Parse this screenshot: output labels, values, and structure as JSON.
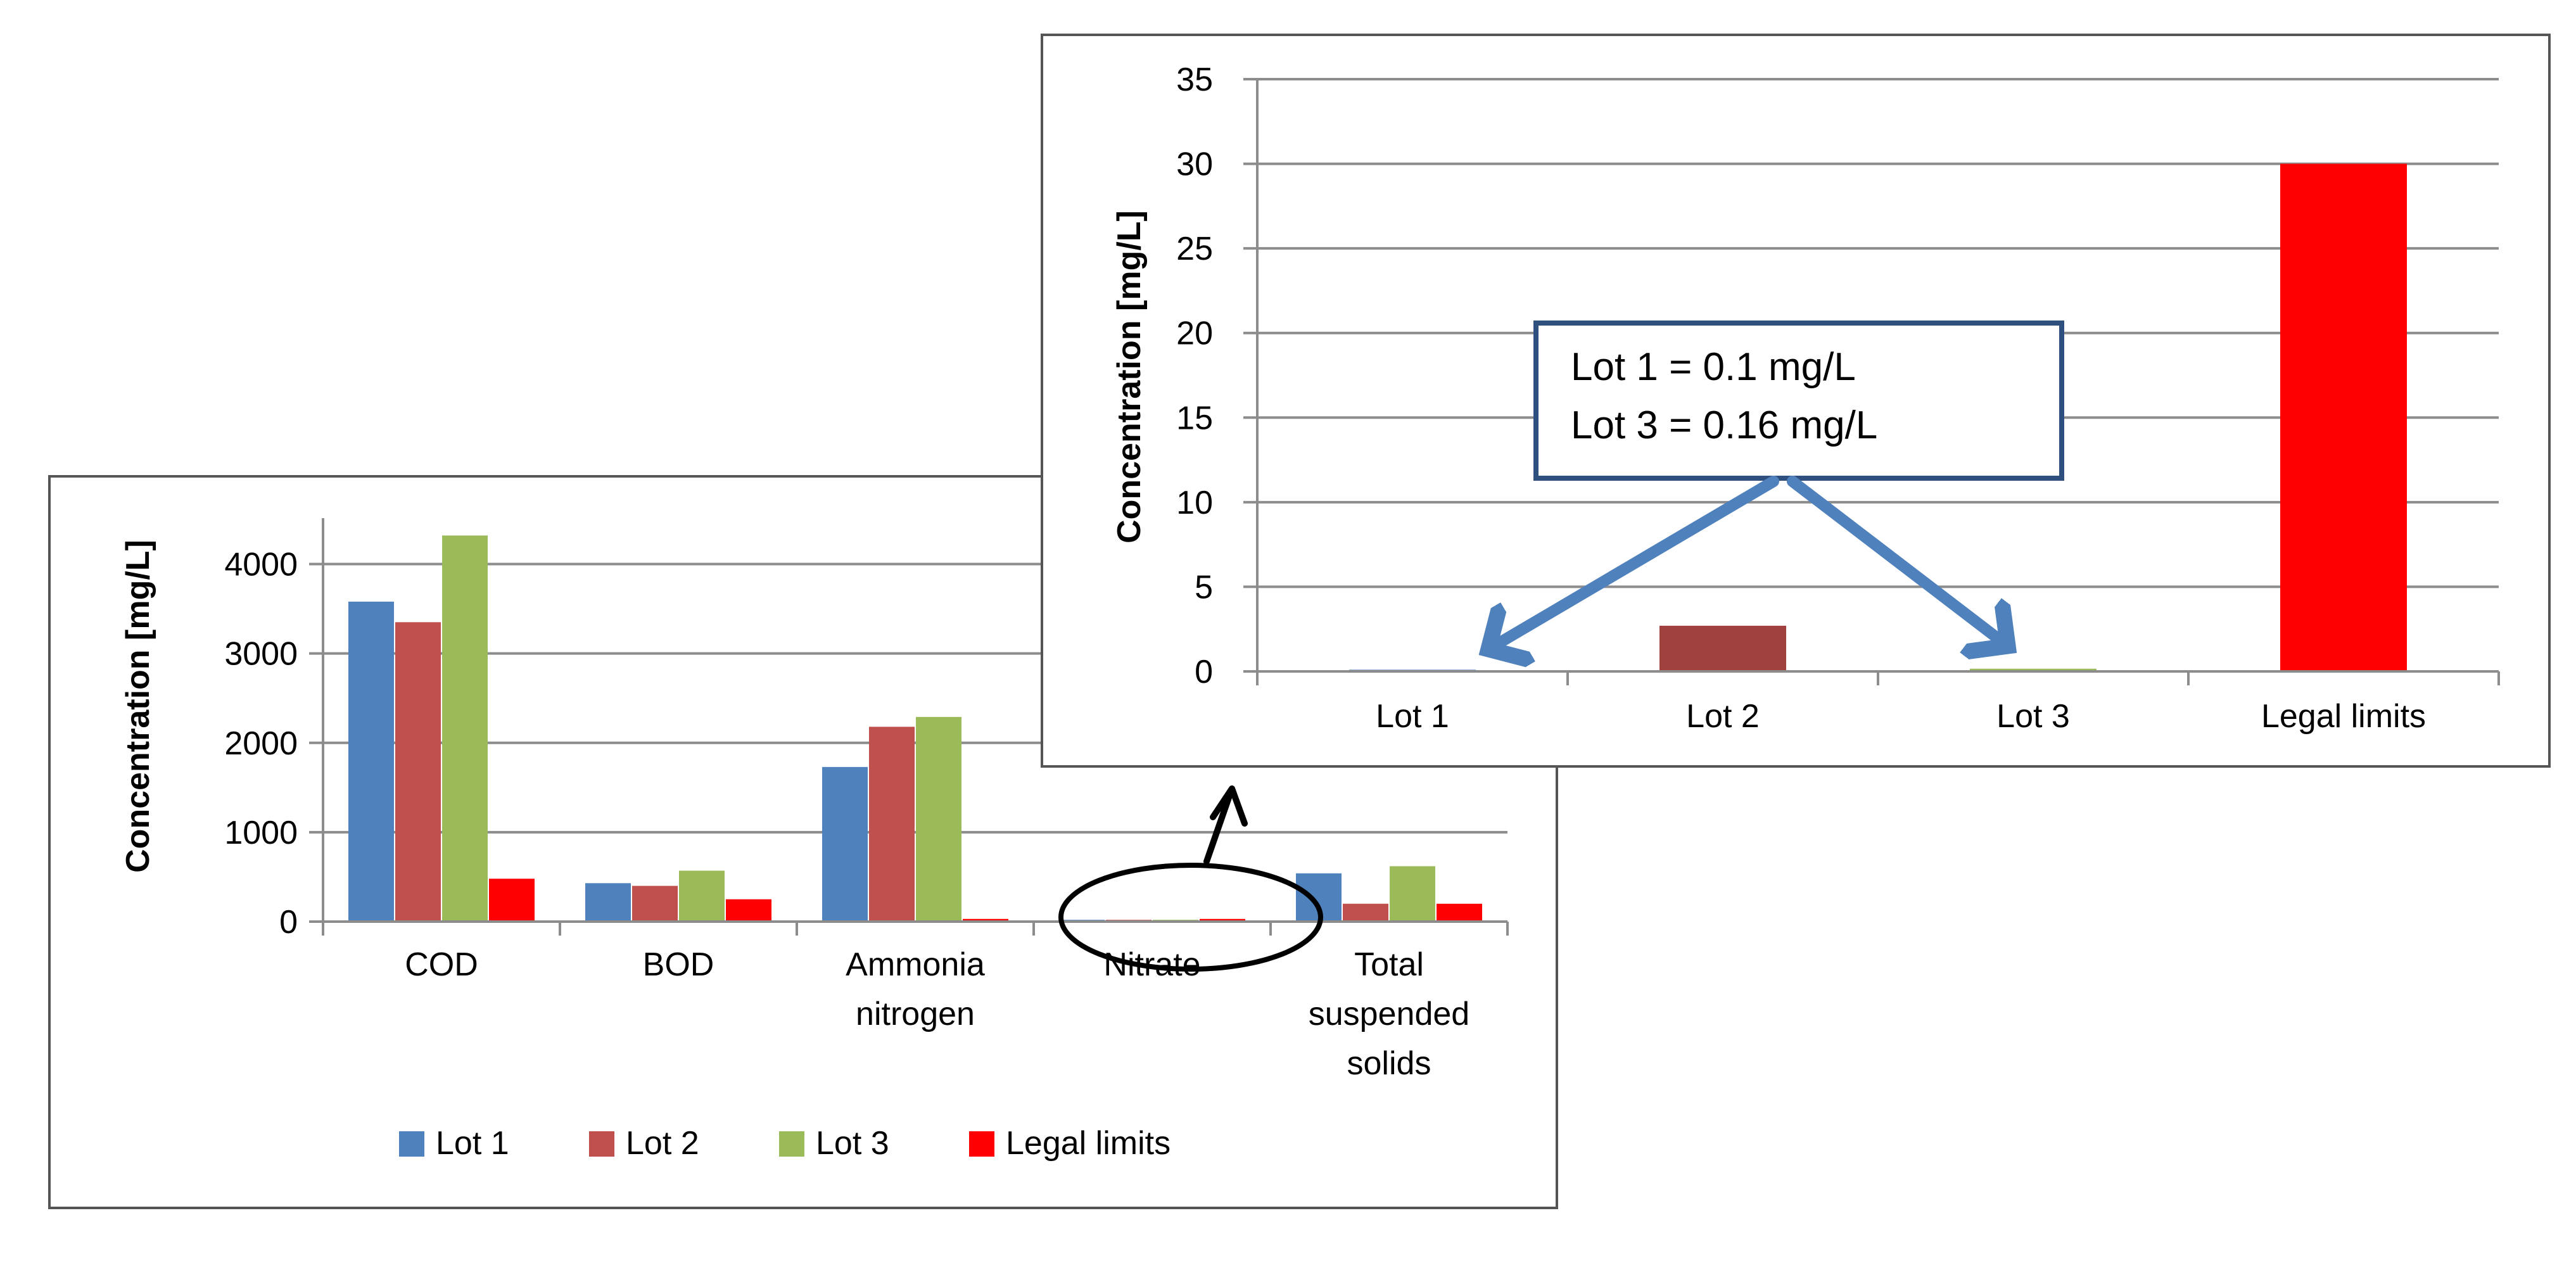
{
  "chart_data": [
    {
      "type": "bar",
      "title": "",
      "xlabel": "",
      "ylabel": "Concentration [mg/L]",
      "ylim": [
        0,
        4500
      ],
      "yticks": [
        0,
        1000,
        2000,
        3000,
        4000
      ],
      "categories": [
        [
          "COD"
        ],
        [
          "BOD"
        ],
        [
          "Ammonia",
          "nitrogen"
        ],
        [
          "Nitrate"
        ],
        [
          "Total",
          "suspended",
          "solids"
        ]
      ],
      "series": [
        {
          "name": "Lot 1",
          "color": "#4F81BD",
          "values": [
            3580,
            430,
            1730,
            20,
            540
          ]
        },
        {
          "name": "Lot 2",
          "color": "#C0504D",
          "values": [
            3350,
            400,
            2180,
            20,
            200
          ]
        },
        {
          "name": "Lot 3",
          "color": "#9BBB59",
          "values": [
            4320,
            570,
            2290,
            20,
            620
          ]
        },
        {
          "name": "Legal limits",
          "color": "#FF0000",
          "values": [
            480,
            250,
            30,
            30,
            200
          ]
        }
      ],
      "grid": true,
      "legend": "bottom"
    },
    {
      "type": "bar",
      "title": "",
      "xlabel": "",
      "ylabel": "Concentration [mg/L]",
      "ylim": [
        0,
        35
      ],
      "yticks": [
        0,
        5,
        10,
        15,
        20,
        25,
        30,
        35
      ],
      "categories": [
        "Lot 1",
        "Lot 2",
        "Lot 3",
        "Legal limits"
      ],
      "values": [
        0.1,
        2.7,
        0.16,
        30
      ],
      "colors": [
        "#4F81BD",
        "#A0413E",
        "#9BBB59",
        "#FF0000"
      ],
      "grid": true,
      "annotation": [
        "Lot 1 = 0.1 mg/L",
        "Lot 3 = 0.16 mg/L"
      ]
    }
  ]
}
